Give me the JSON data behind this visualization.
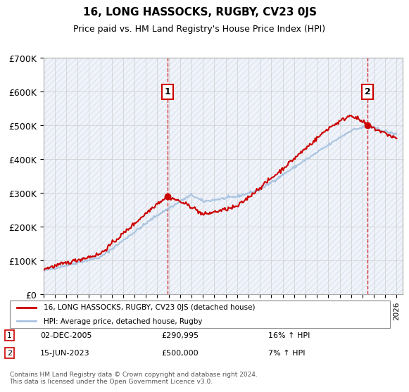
{
  "title": "16, LONG HASSOCKS, RUGBY, CV23 0JS",
  "subtitle": "Price paid vs. HM Land Registry's House Price Index (HPI)",
  "ylabel": "",
  "ylim": [
    0,
    700000
  ],
  "yticks": [
    0,
    100000,
    200000,
    300000,
    400000,
    500000,
    600000,
    700000
  ],
  "ytick_labels": [
    "£0",
    "£100K",
    "£200K",
    "£300K",
    "£400K",
    "£500K",
    "£600K",
    "£700K"
  ],
  "x_start_year": 1995,
  "x_end_year": 2026,
  "sale1_date": 2005.92,
  "sale1_price": 290995,
  "sale1_label": "1",
  "sale2_date": 2023.45,
  "sale2_price": 500000,
  "sale2_label": "2",
  "legend_line1": "16, LONG HASSOCKS, RUGBY, CV23 0JS (detached house)",
  "legend_line2": "HPI: Average price, detached house, Rugby",
  "annotation1_date": "02-DEC-2005",
  "annotation1_price": "£290,995",
  "annotation1_hpi": "16% ↑ HPI",
  "annotation2_date": "15-JUN-2023",
  "annotation2_price": "£500,000",
  "annotation2_hpi": "7% ↑ HPI",
  "footer": "Contains HM Land Registry data © Crown copyright and database right 2024.\nThis data is licensed under the Open Government Licence v3.0.",
  "hpi_color": "#aac4e0",
  "sale_color": "#cc0000",
  "grid_color": "#cccccc",
  "background_color": "#ffffff",
  "plot_bg_color": "#f0f4fa"
}
